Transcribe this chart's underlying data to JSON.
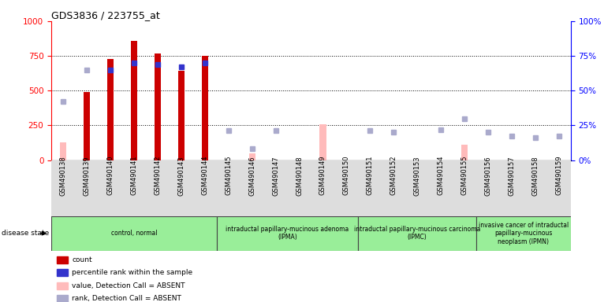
{
  "title": "GDS3836 / 223755_at",
  "samples": [
    "GSM490138",
    "GSM490139",
    "GSM490140",
    "GSM490141",
    "GSM490142",
    "GSM490143",
    "GSM490144",
    "GSM490145",
    "GSM490146",
    "GSM490147",
    "GSM490148",
    "GSM490149",
    "GSM490150",
    "GSM490151",
    "GSM490152",
    "GSM490153",
    "GSM490154",
    "GSM490155",
    "GSM490156",
    "GSM490157",
    "GSM490158",
    "GSM490159"
  ],
  "count_values": [
    null,
    490,
    730,
    860,
    770,
    640,
    750,
    null,
    null,
    null,
    null,
    null,
    null,
    null,
    null,
    null,
    null,
    null,
    null,
    null,
    null,
    null
  ],
  "rank_values": [
    null,
    null,
    65,
    70,
    69,
    67,
    70,
    null,
    null,
    null,
    null,
    null,
    null,
    null,
    null,
    null,
    null,
    null,
    null,
    null,
    null,
    null
  ],
  "absent_value": [
    130,
    null,
    null,
    null,
    null,
    null,
    null,
    null,
    50,
    null,
    null,
    260,
    null,
    null,
    null,
    null,
    null,
    110,
    null,
    null,
    null,
    null
  ],
  "absent_rank": [
    42,
    65,
    null,
    null,
    null,
    null,
    null,
    21,
    8,
    21,
    null,
    null,
    null,
    21,
    20,
    null,
    22,
    30,
    20,
    17,
    16,
    17
  ],
  "ylim_left": [
    0,
    1000
  ],
  "ylim_right": [
    0,
    100
  ],
  "yticks_left": [
    0,
    250,
    500,
    750,
    1000
  ],
  "yticks_right": [
    0,
    25,
    50,
    75,
    100
  ],
  "groups": [
    {
      "label": "control, normal",
      "start": 0,
      "end": 7
    },
    {
      "label": "intraductal papillary-mucinous adenoma\n(IPMA)",
      "start": 7,
      "end": 13
    },
    {
      "label": "intraductal papillary-mucinous carcinoma\n(IPMC)",
      "start": 13,
      "end": 18
    },
    {
      "label": "invasive cancer of intraductal\npapillary-mucinous\nneoplasm (IPMN)",
      "start": 18,
      "end": 22
    }
  ],
  "group_color": "#99ee99",
  "legend_labels": [
    "count",
    "percentile rank within the sample",
    "value, Detection Call = ABSENT",
    "rank, Detection Call = ABSENT"
  ],
  "legend_colors": [
    "#cc0000",
    "#3333cc",
    "#ffbbbb",
    "#aaaacc"
  ],
  "bar_color_present": "#cc0000",
  "bar_color_absent": "#ffbbbb",
  "rank_color_present": "#3333cc",
  "rank_color_absent": "#aaaacc",
  "fig_width": 7.66,
  "fig_height": 3.84
}
